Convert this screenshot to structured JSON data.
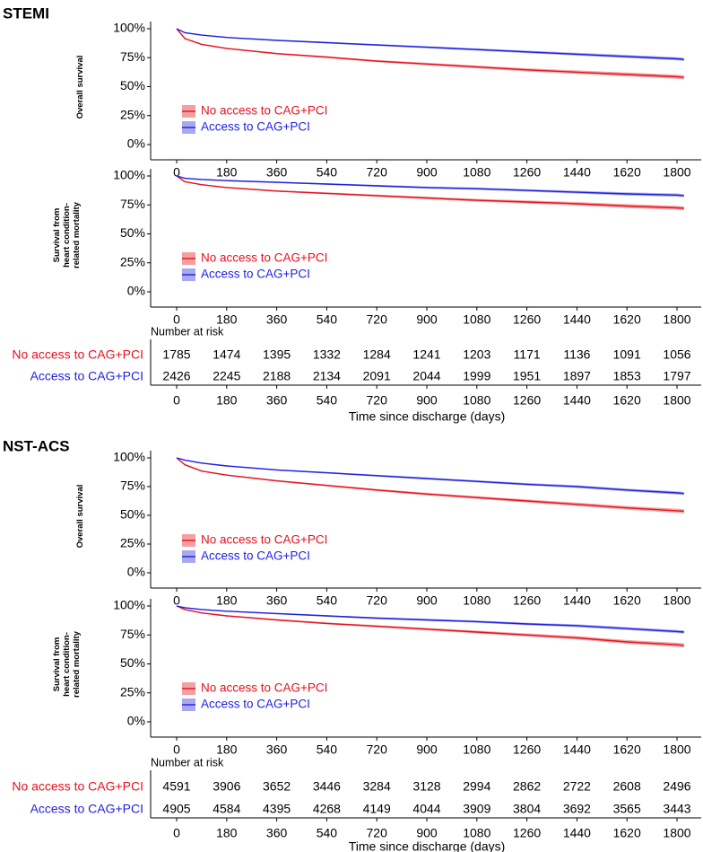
{
  "colors": {
    "no_access": "#e8101e",
    "access": "#1f1fe0",
    "no_access_band": "#f4a0a0",
    "access_band": "#a9a9ef"
  },
  "sections": [
    {
      "title": "STEMI",
      "risk": {
        "title": "Number at risk",
        "rows": [
          {
            "label": "No access to CAG+PCI",
            "values": [
              "1785",
              "1474",
              "1395",
              "1332",
              "1284",
              "1241",
              "1203",
              "1171",
              "1136",
              "1091",
              "1056"
            ]
          },
          {
            "label": "Access to CAG+PCI",
            "values": [
              "2426",
              "2245",
              "2188",
              "2134",
              "2091",
              "2044",
              "1999",
              "1951",
              "1897",
              "1853",
              "1797"
            ]
          }
        ],
        "x_ticks": [
          "0",
          "180",
          "360",
          "540",
          "720",
          "900",
          "1080",
          "1260",
          "1440",
          "1620",
          "1800"
        ],
        "x_title": "Time since discharge (days)"
      }
    },
    {
      "title": "NST-ACS",
      "risk": {
        "title": "Number at risk",
        "rows": [
          {
            "label": "No access to CAG+PCI",
            "values": [
              "4591",
              "3906",
              "3652",
              "3446",
              "3284",
              "3128",
              "2994",
              "2862",
              "2722",
              "2608",
              "2496"
            ]
          },
          {
            "label": "Access to CAG+PCI",
            "values": [
              "4905",
              "4584",
              "4395",
              "4268",
              "4149",
              "4044",
              "3909",
              "3804",
              "3692",
              "3565",
              "3443"
            ]
          }
        ],
        "x_ticks": [
          "0",
          "180",
          "360",
          "540",
          "720",
          "900",
          "1080",
          "1260",
          "1440",
          "1620",
          "1800"
        ],
        "x_title": "Time since discharge (days)"
      }
    }
  ],
  "chart_data": [
    {
      "type": "line",
      "section": "STEMI",
      "ylabel": [
        "Overall survival"
      ],
      "xlim": [
        0,
        1830
      ],
      "ylim": [
        0,
        100
      ],
      "y_ticks": [
        "0%",
        "25%",
        "50%",
        "75%",
        "100%"
      ],
      "x_ticks": [
        "0",
        "180",
        "360",
        "540",
        "720",
        "900",
        "1080",
        "1260",
        "1440",
        "1620",
        "1800"
      ],
      "x": [
        0,
        30,
        90,
        180,
        360,
        540,
        720,
        900,
        1080,
        1260,
        1440,
        1620,
        1800,
        1825
      ],
      "series": [
        {
          "name": "No access to CAG+PCI",
          "values": [
            100,
            91.5,
            86.5,
            83,
            78.5,
            75.5,
            72,
            69.5,
            67,
            64.5,
            62.5,
            60.5,
            58.5,
            58
          ]
        },
        {
          "name": "Access to CAG+PCI",
          "values": [
            100,
            96.5,
            94.5,
            92.5,
            90,
            88,
            86,
            84,
            82,
            80,
            78,
            76,
            74,
            73.5
          ]
        }
      ],
      "legend": [
        "No access to CAG+PCI",
        "Access to CAG+PCI"
      ]
    },
    {
      "type": "line",
      "section": "STEMI",
      "ylabel": [
        "Survival from",
        "heart condition-",
        "related mortality"
      ],
      "xlim": [
        0,
        1830
      ],
      "ylim": [
        0,
        100
      ],
      "y_ticks": [
        "0%",
        "25%",
        "50%",
        "75%",
        "100%"
      ],
      "x_ticks": [
        "0",
        "180",
        "360",
        "540",
        "720",
        "900",
        "1080",
        "1260",
        "1440",
        "1620",
        "1800"
      ],
      "x": [
        0,
        30,
        90,
        180,
        360,
        540,
        720,
        900,
        1080,
        1260,
        1440,
        1620,
        1800,
        1825
      ],
      "series": [
        {
          "name": "No access to CAG+PCI",
          "values": [
            100,
            95,
            92.5,
            90,
            87,
            85,
            83,
            81,
            79,
            77.5,
            76,
            74,
            72.5,
            72
          ]
        },
        {
          "name": "Access to CAG+PCI",
          "values": [
            100,
            98,
            97,
            96,
            94.5,
            93,
            91.5,
            90,
            89,
            87.5,
            86,
            84.5,
            83.5,
            83
          ]
        }
      ],
      "legend": [
        "No access to CAG+PCI",
        "Access to CAG+PCI"
      ]
    },
    {
      "type": "line",
      "section": "NST-ACS",
      "ylabel": [
        "Overall survival"
      ],
      "xlim": [
        0,
        1830
      ],
      "ylim": [
        0,
        100
      ],
      "y_ticks": [
        "0%",
        "25%",
        "50%",
        "75%",
        "100%"
      ],
      "x_ticks": [
        "0",
        "180",
        "360",
        "540",
        "720",
        "900",
        "1080",
        "1260",
        "1440",
        "1620",
        "1800"
      ],
      "x": [
        0,
        30,
        90,
        180,
        360,
        540,
        720,
        900,
        1080,
        1260,
        1440,
        1620,
        1800,
        1825
      ],
      "series": [
        {
          "name": "No access to CAG+PCI",
          "values": [
            100,
            94,
            88.5,
            85,
            80,
            76,
            72,
            68.5,
            65.5,
            62.5,
            59.5,
            56.5,
            54,
            53.5
          ]
        },
        {
          "name": "Access to CAG+PCI",
          "values": [
            100,
            98,
            95.5,
            93,
            89.5,
            87,
            84.5,
            82,
            79.5,
            77,
            75,
            72,
            69.5,
            69
          ]
        }
      ],
      "legend": [
        "No access to CAG+PCI",
        "Access to CAG+PCI"
      ]
    },
    {
      "type": "line",
      "section": "NST-ACS",
      "ylabel": [
        "Survival from",
        "heart condition-",
        "related mortality"
      ],
      "xlim": [
        0,
        1830
      ],
      "ylim": [
        0,
        100
      ],
      "y_ticks": [
        "0%",
        "25%",
        "50%",
        "75%",
        "100%"
      ],
      "x_ticks": [
        "0",
        "180",
        "360",
        "540",
        "720",
        "900",
        "1080",
        "1260",
        "1440",
        "1620",
        "1800"
      ],
      "x": [
        0,
        30,
        90,
        180,
        360,
        540,
        720,
        900,
        1080,
        1260,
        1440,
        1620,
        1800,
        1825
      ],
      "series": [
        {
          "name": "No access to CAG+PCI",
          "values": [
            100,
            97,
            94,
            91.5,
            88,
            85,
            82.5,
            80,
            77.5,
            75,
            72.5,
            69,
            66.5,
            66
          ]
        },
        {
          "name": "Access to CAG+PCI",
          "values": [
            100,
            98.5,
            97,
            95.5,
            93.5,
            91.5,
            89.5,
            88,
            86.5,
            84.5,
            83,
            80.5,
            78,
            77.5
          ]
        }
      ],
      "legend": [
        "No access to CAG+PCI",
        "Access to CAG+PCI"
      ]
    }
  ]
}
